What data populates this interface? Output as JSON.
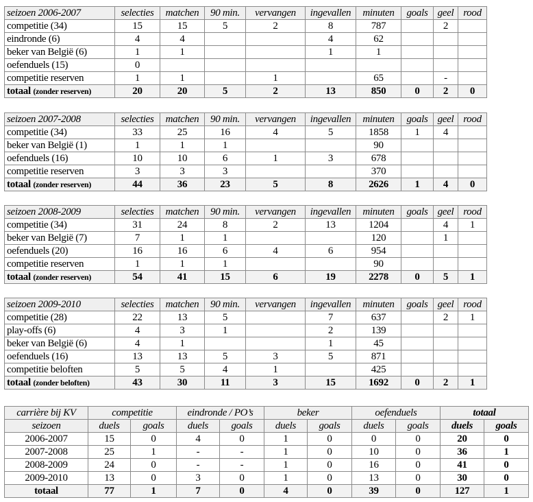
{
  "season_columns": [
    "selecties",
    "matchen",
    "90 min.",
    "vervangen",
    "ingevallen",
    "minuten",
    "goals",
    "geel",
    "rood"
  ],
  "seasons": [
    {
      "title": "seizoen 2006-2007",
      "rows": [
        {
          "label": "competitie  (34)",
          "values": [
            "15",
            "15",
            "5",
            "2",
            "8",
            "787",
            "",
            "2",
            ""
          ]
        },
        {
          "label": "eindronde  (6)",
          "values": [
            "4",
            "4",
            "",
            "",
            "4",
            "62",
            "",
            "",
            ""
          ]
        },
        {
          "label": "beker van België  (6)",
          "values": [
            "1",
            "1",
            "",
            "",
            "1",
            "1",
            "",
            "",
            ""
          ]
        },
        {
          "label": "oefenduels  (15)",
          "values": [
            "0",
            "",
            "",
            "",
            "",
            "",
            "",
            "",
            ""
          ]
        },
        {
          "label": "competitie reserven",
          "values": [
            "1",
            "1",
            "",
            "1",
            "",
            "65",
            "",
            "-",
            ""
          ]
        }
      ],
      "total": {
        "label": "totaal",
        "note": "(zonder reserven)",
        "values": [
          "20",
          "20",
          "5",
          "2",
          "13",
          "850",
          "0",
          "2",
          "0"
        ]
      }
    },
    {
      "title": "seizoen 2007-2008",
      "rows": [
        {
          "label": "competitie  (34)",
          "values": [
            "33",
            "25",
            "16",
            "4",
            "5",
            "1858",
            "1",
            "4",
            ""
          ]
        },
        {
          "label": "beker van België  (1)",
          "values": [
            "1",
            "1",
            "1",
            "",
            "",
            "90",
            "",
            "",
            ""
          ]
        },
        {
          "label": "oefenduels  (16)",
          "values": [
            "10",
            "10",
            "6",
            "1",
            "3",
            "678",
            "",
            "",
            ""
          ]
        },
        {
          "label": "competitie reserven",
          "values": [
            "3",
            "3",
            "3",
            "",
            "",
            "370",
            "",
            "",
            ""
          ]
        }
      ],
      "total": {
        "label": "totaal",
        "note": "(zonder reserven)",
        "values": [
          "44",
          "36",
          "23",
          "5",
          "8",
          "2626",
          "1",
          "4",
          "0"
        ]
      }
    },
    {
      "title": "seizoen 2008-2009",
      "rows": [
        {
          "label": "competitie  (34)",
          "values": [
            "31",
            "24",
            "8",
            "2",
            "13",
            "1204",
            "",
            "4",
            "1"
          ]
        },
        {
          "label": "beker van België  (7)",
          "values": [
            "7",
            "1",
            "1",
            "",
            "",
            "120",
            "",
            "1",
            ""
          ]
        },
        {
          "label": "oefenduels  (20)",
          "values": [
            "16",
            "16",
            "6",
            "4",
            "6",
            "954",
            "",
            "",
            ""
          ]
        },
        {
          "label": "competitie reserven",
          "values": [
            "1",
            "1",
            "1",
            "",
            "",
            "90",
            "",
            "",
            ""
          ]
        }
      ],
      "total": {
        "label": "totaal",
        "note": "(zonder reserven)",
        "values": [
          "54",
          "41",
          "15",
          "6",
          "19",
          "2278",
          "0",
          "5",
          "1"
        ]
      }
    },
    {
      "title": "seizoen 2009-2010",
      "rows": [
        {
          "label": "competitie  (28)",
          "values": [
            "22",
            "13",
            "5",
            "",
            "7",
            "637",
            "",
            "2",
            "1"
          ]
        },
        {
          "label": "play-offs  (6)",
          "values": [
            "4",
            "3",
            "1",
            "",
            "2",
            "139",
            "",
            "",
            ""
          ]
        },
        {
          "label": "beker van België  (6)",
          "values": [
            "4",
            "1",
            "",
            "",
            "1",
            "45",
            "",
            "",
            ""
          ]
        },
        {
          "label": "oefenduels  (16)",
          "values": [
            "13",
            "13",
            "5",
            "3",
            "5",
            "871",
            "",
            "",
            ""
          ]
        },
        {
          "label": "competitie beloften",
          "values": [
            "5",
            "5",
            "4",
            "1",
            "",
            "425",
            "",
            "",
            ""
          ]
        }
      ],
      "total": {
        "label": "totaal",
        "note": "(zonder beloften)",
        "values": [
          "43",
          "30",
          "11",
          "3",
          "15",
          "1692",
          "0",
          "2",
          "1"
        ]
      }
    }
  ],
  "career": {
    "title": "carrière bij KV",
    "groups": [
      "competitie",
      "eindronde / PO’s",
      "beker",
      "oefenduels",
      "totaal"
    ],
    "row_header": "seizoen",
    "subheaders": [
      "duels",
      "goals"
    ],
    "rows": [
      {
        "season": "2006-2007",
        "values": [
          "15",
          "0",
          "4",
          "0",
          "1",
          "0",
          "0",
          "0",
          "20",
          "0"
        ]
      },
      {
        "season": "2007-2008",
        "values": [
          "25",
          "1",
          "-",
          "-",
          "1",
          "0",
          "10",
          "0",
          "36",
          "1"
        ]
      },
      {
        "season": "2008-2009",
        "values": [
          "24",
          "0",
          "-",
          "-",
          "1",
          "0",
          "16",
          "0",
          "41",
          "0"
        ]
      },
      {
        "season": "2009-2010",
        "values": [
          "13",
          "0",
          "3",
          "0",
          "1",
          "0",
          "13",
          "0",
          "30",
          "0"
        ]
      }
    ],
    "total": {
      "label": "totaal",
      "values": [
        "77",
        "1",
        "7",
        "0",
        "4",
        "0",
        "39",
        "0",
        "127",
        "1"
      ]
    }
  }
}
